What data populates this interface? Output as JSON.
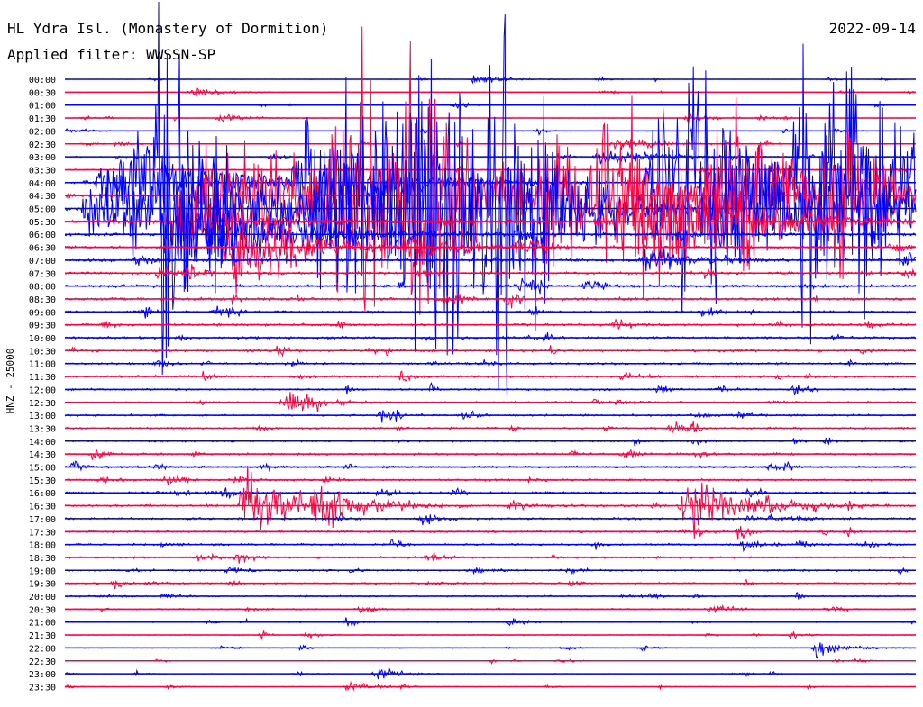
{
  "header": {
    "station": "HL Ydra Isl. (Monastery of Dormition)",
    "date": "2022-09-14",
    "filter": "Applied filter: WWSSN-SP"
  },
  "chart_data": {
    "type": "line",
    "ylabel": "HNZ - 25000",
    "series_colors": [
      "#0000ff",
      "#ff0040"
    ],
    "row_labels": [
      "00:00",
      "00:30",
      "01:00",
      "01:30",
      "02:00",
      "02:30",
      "03:00",
      "03:30",
      "04:00",
      "04:30",
      "05:00",
      "05:30",
      "06:00",
      "06:30",
      "07:00",
      "07:30",
      "08:00",
      "08:30",
      "09:00",
      "09:30",
      "10:00",
      "10:30",
      "11:00",
      "11:30",
      "12:00",
      "12:30",
      "13:00",
      "13:30",
      "14:00",
      "14:30",
      "15:00",
      "15:30",
      "16:00",
      "16:30",
      "17:00",
      "17:30",
      "18:00",
      "18:30",
      "19:00",
      "19:30",
      "20:00",
      "20:30",
      "21:00",
      "21:30",
      "22:00",
      "22:30",
      "23:00",
      "23:30"
    ],
    "row_noise_level": [
      0.05,
      0.05,
      0.06,
      0.08,
      0.1,
      0.12,
      0.15,
      0.2,
      0.35,
      0.45,
      0.5,
      0.55,
      0.55,
      0.5,
      0.5,
      0.45,
      0.45,
      0.45,
      0.4,
      0.4,
      0.4,
      0.38,
      0.35,
      0.35,
      0.3,
      0.3,
      0.3,
      0.3,
      0.32,
      0.35,
      0.35,
      0.35,
      0.4,
      0.4,
      0.35,
      0.35,
      0.32,
      0.3,
      0.3,
      0.28,
      0.25,
      0.22,
      0.18,
      0.15,
      0.12,
      0.1,
      0.08,
      0.07
    ],
    "events": [
      {
        "row": 0,
        "minute": 14.5,
        "amplitude": 6,
        "duration": 1.2
      },
      {
        "row": 1,
        "minute": 4.5,
        "amplitude": 6,
        "duration": 1.2
      },
      {
        "row": 3,
        "minute": 5.5,
        "amplitude": 6,
        "duration": 1
      },
      {
        "row": 8,
        "minute": 2.5,
        "amplitude": 50,
        "duration": 3
      },
      {
        "row": 9,
        "minute": 6.5,
        "amplitude": 40,
        "duration": 2.5
      },
      {
        "row": 10,
        "minute": 2,
        "amplitude": 45,
        "duration": 3
      },
      {
        "row": 9,
        "minute": 5,
        "amplitude": 55,
        "duration": 3
      },
      {
        "row": 8,
        "minute": 8.5,
        "amplitude": 85,
        "duration": 2.5
      },
      {
        "row": 9,
        "minute": 9.5,
        "amplitude": 100,
        "duration": 2
      },
      {
        "row": 10,
        "minute": 3.5,
        "amplitude": 160,
        "duration": 2.5
      },
      {
        "row": 9,
        "minute": 12.5,
        "amplitude": 140,
        "duration": 2.5
      },
      {
        "row": 10,
        "minute": 15,
        "amplitude": 70,
        "duration": 2
      },
      {
        "row": 9,
        "minute": 19,
        "amplitude": 80,
        "duration": 2
      },
      {
        "row": 8,
        "minute": 21,
        "amplitude": 110,
        "duration": 3
      },
      {
        "row": 10,
        "minute": 23,
        "amplitude": 100,
        "duration": 3
      },
      {
        "row": 8,
        "minute": 26,
        "amplitude": 170,
        "duration": 2
      },
      {
        "row": 8,
        "minute": 28,
        "amplitude": 110,
        "duration": 3
      },
      {
        "row": 11,
        "minute": 20,
        "amplitude": 120,
        "duration": 3
      },
      {
        "row": 10,
        "minute": 15.5,
        "amplitude": 90,
        "duration": 2
      },
      {
        "row": 9,
        "minute": 17,
        "amplitude": 90,
        "duration": 2
      },
      {
        "row": 10,
        "minute": 10,
        "amplitude": 130,
        "duration": 3
      },
      {
        "row": 9,
        "minute": 10.5,
        "amplitude": 100,
        "duration": 2
      },
      {
        "row": 10,
        "minute": 12,
        "amplitude": 110,
        "duration": 2
      },
      {
        "row": 8,
        "minute": 22,
        "amplitude": 100,
        "duration": 2
      },
      {
        "row": 9,
        "minute": 23,
        "amplitude": 85,
        "duration": 2.5
      },
      {
        "row": 10,
        "minute": 13,
        "amplitude": 120,
        "duration": 2.5
      },
      {
        "row": 9,
        "minute": 24,
        "amplitude": 55,
        "duration": 2
      },
      {
        "row": 12,
        "minute": 4,
        "amplitude": 90,
        "duration": 3
      },
      {
        "row": 13,
        "minute": 6,
        "amplitude": 75,
        "duration": 2
      },
      {
        "row": 10,
        "minute": 9,
        "amplitude": 70,
        "duration": 2
      },
      {
        "row": 10,
        "minute": 27,
        "amplitude": 60,
        "duration": 3
      },
      {
        "row": 8,
        "minute": 1.5,
        "amplitude": 45,
        "duration": 2
      },
      {
        "row": 11,
        "minute": 4,
        "amplitude": 40,
        "duration": 2
      },
      {
        "row": 9,
        "minute": 27,
        "amplitude": 80,
        "duration": 2.5
      },
      {
        "row": 8,
        "minute": 26.5,
        "amplitude": 60,
        "duration": 2
      },
      {
        "row": 10,
        "minute": 1,
        "amplitude": 40,
        "duration": 2
      },
      {
        "row": 33,
        "minute": 6.5,
        "amplitude": 45,
        "duration": 2
      },
      {
        "row": 33,
        "minute": 22,
        "amplitude": 35,
        "duration": 2
      },
      {
        "row": 33,
        "minute": 9,
        "amplitude": 20,
        "duration": 1.5
      },
      {
        "row": 13,
        "minute": 12,
        "amplitude": 18,
        "duration": 1.5
      },
      {
        "row": 14,
        "minute": 20.5,
        "amplitude": 15,
        "duration": 1.5
      },
      {
        "row": 25,
        "minute": 8,
        "amplitude": 14,
        "duration": 1
      },
      {
        "row": 44,
        "minute": 26.5,
        "amplitude": 10,
        "duration": 1
      },
      {
        "row": 46,
        "minute": 11,
        "amplitude": 7,
        "duration": 1
      },
      {
        "row": 47,
        "minute": 10,
        "amplitude": 7,
        "duration": 1
      },
      {
        "row": 5,
        "minute": 19.5,
        "amplitude": 8,
        "duration": 1.5
      },
      {
        "row": 6,
        "minute": 19,
        "amplitude": 10,
        "duration": 2
      },
      {
        "row": 3,
        "minute": 22,
        "amplitude": 5,
        "duration": 1
      }
    ]
  }
}
